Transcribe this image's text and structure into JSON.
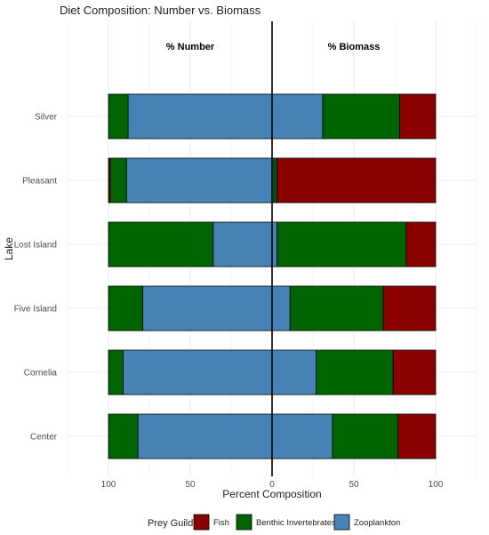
{
  "chart_data": {
    "type": "bar",
    "orientation": "horizontal",
    "layout": "diverging",
    "title": "Diet Composition: Number vs. Biomass",
    "panel_labels": {
      "left": "% Number",
      "right": "% Biomass"
    },
    "xlabel": "Percent Composition",
    "ylabel": "Lake",
    "xlim_each_side": [
      0,
      100
    ],
    "x_ticks": [
      "100",
      "50",
      "0",
      "50",
      "100"
    ],
    "grid": true,
    "categories": [
      "Silver",
      "Pleasant",
      "Lost Island",
      "Five Island",
      "Cornelia",
      "Center"
    ],
    "legend": {
      "title": "Prey Guild",
      "position": "bottom",
      "entries": [
        {
          "name": "Fish",
          "color": "#8B0000"
        },
        {
          "name": "Benthic Invertebrates",
          "color": "#006400"
        },
        {
          "name": "Zooplankton",
          "color": "#4682B4"
        }
      ]
    },
    "number_series": [
      {
        "name": "Zooplankton",
        "color": "#4682B4",
        "values": [
          88,
          89,
          36,
          79,
          91,
          82
        ]
      },
      {
        "name": "Benthic Invertebrates",
        "color": "#006400",
        "values": [
          12,
          10,
          64,
          21,
          9,
          18
        ]
      },
      {
        "name": "Fish",
        "color": "#8B0000",
        "values": [
          0,
          1,
          0,
          0,
          0,
          0
        ]
      }
    ],
    "biomass_series": [
      {
        "name": "Zooplankton",
        "color": "#4682B4",
        "values": [
          31,
          1,
          3,
          11,
          27,
          37
        ]
      },
      {
        "name": "Benthic Invertebrates",
        "color": "#006400",
        "values": [
          47,
          2,
          79,
          57,
          47,
          40
        ]
      },
      {
        "name": "Fish",
        "color": "#8B0000",
        "values": [
          22,
          97,
          18,
          32,
          26,
          23
        ]
      }
    ]
  }
}
